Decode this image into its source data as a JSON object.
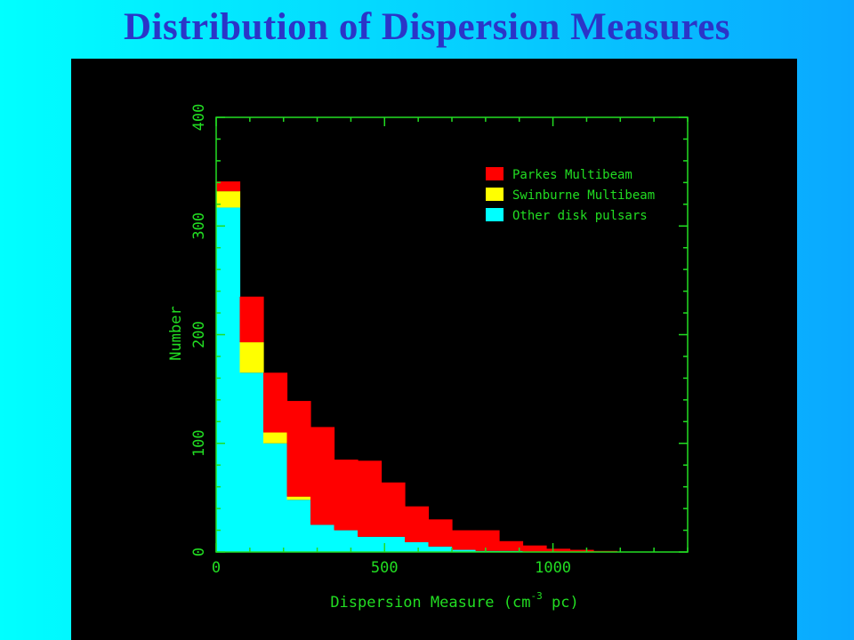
{
  "slide": {
    "title": "Distribution of Dispersion Measures"
  },
  "chart_data": {
    "type": "bar",
    "stacked": true,
    "xlabel": "Dispersion Measure (cm",
    "xlabel_superscript": "-3",
    "xlabel_suffix": " pc)",
    "ylabel": "Number",
    "xlim": [
      0,
      1400
    ],
    "ylim": [
      0,
      400
    ],
    "x_ticks": [
      0,
      500,
      1000
    ],
    "y_ticks": [
      0,
      100,
      200,
      300,
      400
    ],
    "bin_edges": [
      0,
      70,
      140,
      210,
      280,
      350,
      420,
      490,
      560,
      630,
      700,
      770,
      840,
      910,
      980,
      1050,
      1120,
      1190,
      1260,
      1330
    ],
    "series": [
      {
        "name": "Other disk pulsars",
        "color": "#00ffff",
        "values": [
          317,
          165,
          100,
          48,
          25,
          20,
          14,
          14,
          9,
          5,
          2,
          1,
          1,
          0,
          0,
          0,
          0,
          0,
          0
        ]
      },
      {
        "name": "Swinburne Multibeam",
        "color": "#ffff00",
        "values": [
          15,
          28,
          10,
          3,
          0,
          0,
          0,
          0,
          0,
          0,
          0,
          0,
          0,
          0,
          0,
          0,
          0,
          0,
          0
        ]
      },
      {
        "name": "Parkes Multibeam",
        "color": "#ff0000",
        "values": [
          9,
          42,
          55,
          88,
          90,
          65,
          70,
          50,
          33,
          25,
          18,
          19,
          9,
          6,
          3,
          2,
          1,
          0,
          0
        ]
      }
    ],
    "legend": {
      "placement": "top-right",
      "entries": [
        "Parkes Multibeam",
        "Swinburne Multibeam",
        "Other disk pulsars"
      ],
      "colors": [
        "#ff0000",
        "#ffff00",
        "#00ffff"
      ]
    },
    "axis_color": "#22dd22",
    "grid": false
  }
}
